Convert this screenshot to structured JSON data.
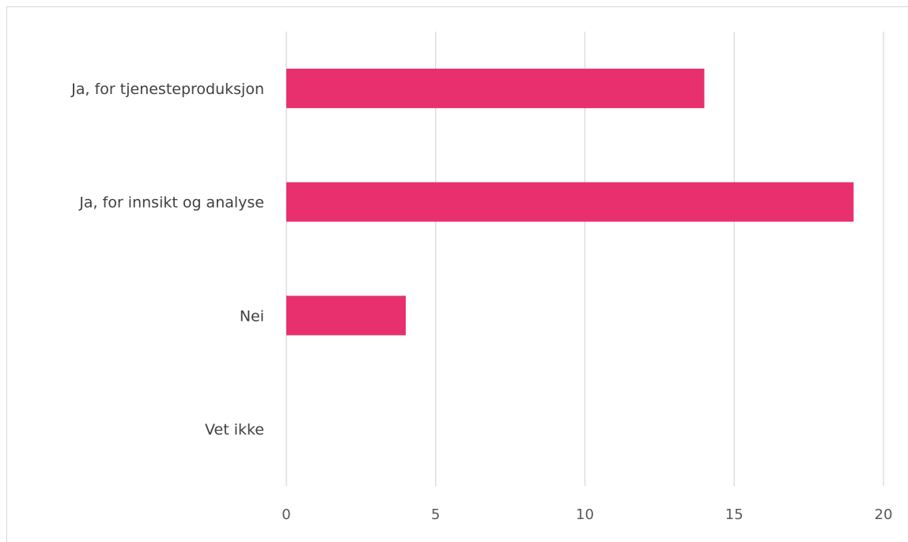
{
  "chart_data": {
    "type": "bar",
    "orientation": "horizontal",
    "categories": [
      "Ja, for tjenesteproduksjon",
      "Ja, for innsikt og analyse",
      "Nei",
      "Vet ikke"
    ],
    "values": [
      14,
      19,
      4,
      0
    ],
    "xlim": [
      0,
      20
    ],
    "xticks": [
      0,
      5,
      10,
      15,
      20
    ],
    "title": "",
    "xlabel": "",
    "ylabel": "",
    "grid": "vertical",
    "legend": "none",
    "bar_color": "#E8306F",
    "grid_color": "#D9D9D9"
  }
}
